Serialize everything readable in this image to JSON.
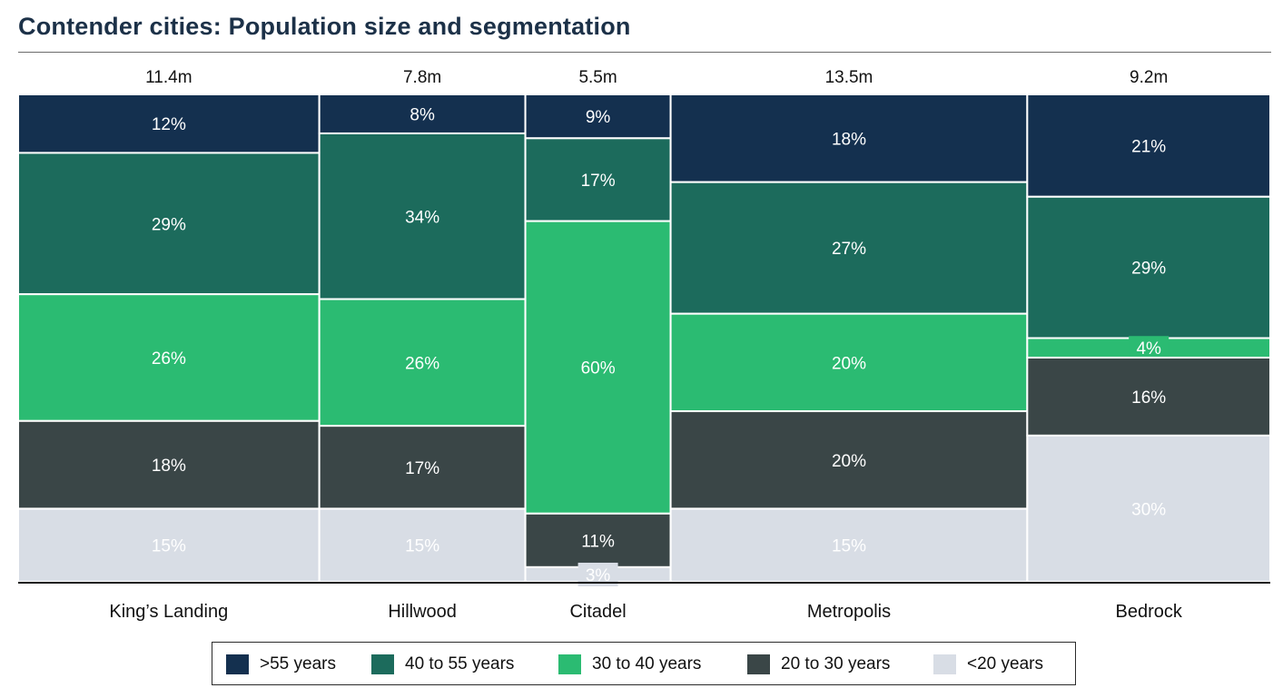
{
  "chart_data": {
    "type": "mekko",
    "title": "Contender cities: Population size and segmentation",
    "categories": [
      "King’s Landing",
      "Hillwood",
      "Citadel",
      "Metropolis",
      "Bedrock"
    ],
    "totals": [
      11.4,
      7.8,
      5.5,
      13.5,
      9.2
    ],
    "total_labels": [
      "11.4m",
      "7.8m",
      "5.5m",
      "13.5m",
      "9.2m"
    ],
    "series": [
      {
        "name": ">55 years",
        "color": "#14304f",
        "values": [
          12,
          8,
          9,
          18,
          21
        ]
      },
      {
        "name": "40 to 55 years",
        "color": "#1c6b5c",
        "values": [
          29,
          34,
          17,
          27,
          29
        ]
      },
      {
        "name": "30 to 40 years",
        "color": "#2bbb72",
        "values": [
          26,
          26,
          60,
          20,
          4
        ]
      },
      {
        "name": "20 to 30 years",
        "color": "#3a4647",
        "values": [
          18,
          17,
          11,
          20,
          16
        ]
      },
      {
        "name": "<20 years",
        "color": "#d8dde5",
        "values": [
          15,
          15,
          3,
          15,
          30
        ]
      }
    ],
    "value_suffix": "%",
    "legend_position": "bottom"
  }
}
